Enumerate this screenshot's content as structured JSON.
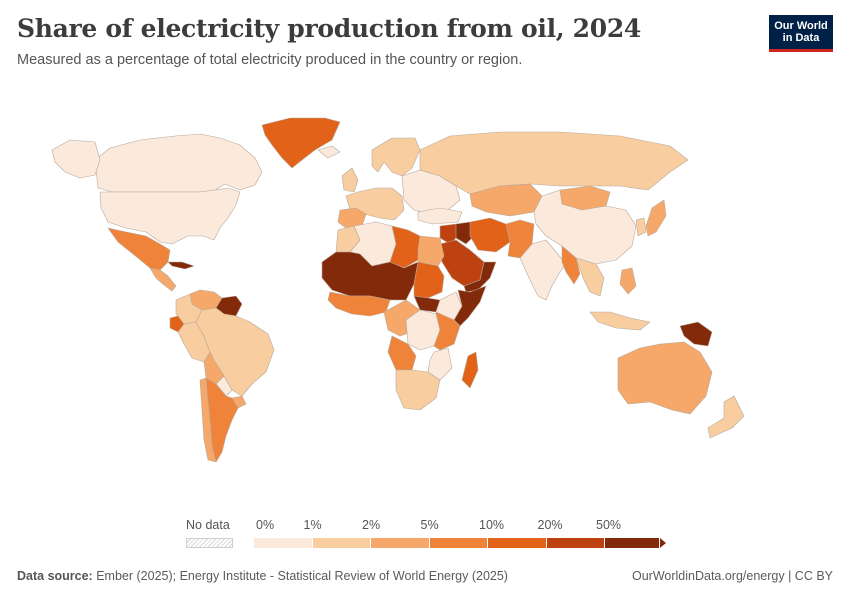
{
  "header": {
    "title": "Share of electricity production from oil, 2024",
    "subtitle": "Measured as a percentage of total electricity produced in the country or region."
  },
  "logo": {
    "line1": "Our World",
    "line2": "in Data"
  },
  "legend": {
    "no_data_label": "No data",
    "bins": [
      {
        "label": "0%",
        "color": "#fbe9dc"
      },
      {
        "label": "1%",
        "color": "#f8cd9f"
      },
      {
        "label": "2%",
        "color": "#f5a86a"
      },
      {
        "label": "5%",
        "color": "#ef8339"
      },
      {
        "label": "10%",
        "color": "#e2621a"
      },
      {
        "label": "20%",
        "color": "#bd4210"
      },
      {
        "label": "50%",
        "color": "#832a0b"
      }
    ]
  },
  "footer": {
    "source_label": "Data source:",
    "source_text": "Ember (2025); Energy Institute - Statistical Review of World Energy (2025)",
    "right_text": "OurWorldinData.org/energy | CC BY"
  },
  "colors": {
    "border": "#b9a99a",
    "ocean": "#ffffff"
  },
  "map_regions": [
    {
      "name": "Canada",
      "color": "#fbe9dc"
    },
    {
      "name": "United States",
      "color": "#fbe9dc"
    },
    {
      "name": "Alaska",
      "color": "#fbe9dc"
    },
    {
      "name": "Greenland",
      "color": "#e2621a"
    },
    {
      "name": "Mexico",
      "color": "#ef8339"
    },
    {
      "name": "Cuba",
      "color": "#832a0b"
    },
    {
      "name": "Central America",
      "color": "#f5a86a"
    },
    {
      "name": "Venezuela",
      "color": "#f5a86a"
    },
    {
      "name": "Guyana & Suriname",
      "color": "#832a0b"
    },
    {
      "name": "Colombia",
      "color": "#f8cd9f"
    },
    {
      "name": "Ecuador",
      "color": "#e2621a"
    },
    {
      "name": "Peru",
      "color": "#f8cd9f"
    },
    {
      "name": "Brazil",
      "color": "#f8cd9f"
    },
    {
      "name": "Bolivia",
      "color": "#f5a86a"
    },
    {
      "name": "Paraguay",
      "color": "#fbe9dc"
    },
    {
      "name": "Uruguay",
      "color": "#f5a86a"
    },
    {
      "name": "Argentina",
      "color": "#ef8339"
    },
    {
      "name": "Chile",
      "color": "#f5a86a"
    },
    {
      "name": "Iceland",
      "color": "#fbe9dc"
    },
    {
      "name": "United Kingdom",
      "color": "#f8cd9f"
    },
    {
      "name": "Scandinavia",
      "color": "#f8cd9f"
    },
    {
      "name": "Western Europe",
      "color": "#f8cd9f"
    },
    {
      "name": "Iberia",
      "color": "#f5a86a"
    },
    {
      "name": "Eastern Europe",
      "color": "#fbe9dc"
    },
    {
      "name": "Russia",
      "color": "#f8cd9f"
    },
    {
      "name": "Kazakhstan",
      "color": "#f5a86a"
    },
    {
      "name": "Mongolia",
      "color": "#f5a86a"
    },
    {
      "name": "China",
      "color": "#fbe9dc"
    },
    {
      "name": "Japan",
      "color": "#f5a86a"
    },
    {
      "name": "Korea",
      "color": "#f8cd9f"
    },
    {
      "name": "Turkey",
      "color": "#fbe9dc"
    },
    {
      "name": "Middle East",
      "color": "#bd4210"
    },
    {
      "name": "Iraq",
      "color": "#832a0b"
    },
    {
      "name": "Iran",
      "color": "#e2621a"
    },
    {
      "name": "Saudi Arabia",
      "color": "#bd4210"
    },
    {
      "name": "Yemen & Oman",
      "color": "#832a0b"
    },
    {
      "name": "Afghanistan & Pakistan",
      "color": "#ef8339"
    },
    {
      "name": "India",
      "color": "#fbe9dc"
    },
    {
      "name": "Bangladesh & Myanmar",
      "color": "#ef8339"
    },
    {
      "name": "Southeast Asia",
      "color": "#f8cd9f"
    },
    {
      "name": "Indonesia",
      "color": "#f8cd9f"
    },
    {
      "name": "Philippines",
      "color": "#f5a86a"
    },
    {
      "name": "Papua New Guinea",
      "color": "#832a0b"
    },
    {
      "name": "Australia",
      "color": "#f5a86a"
    },
    {
      "name": "New Zealand",
      "color": "#f8cd9f"
    },
    {
      "name": "Morocco",
      "color": "#f8cd9f"
    },
    {
      "name": "Algeria",
      "color": "#fbe9dc"
    },
    {
      "name": "Libya",
      "color": "#e2621a"
    },
    {
      "name": "Egypt",
      "color": "#f5a86a"
    },
    {
      "name": "Sahel",
      "color": "#832a0b"
    },
    {
      "name": "Sudan",
      "color": "#e2621a"
    },
    {
      "name": "South Sudan",
      "color": "#832a0b"
    },
    {
      "name": "Horn of Africa",
      "color": "#832a0b"
    },
    {
      "name": "Ethiopia",
      "color": "#fbe9dc"
    },
    {
      "name": "West Africa",
      "color": "#ef8339"
    },
    {
      "name": "Central Africa",
      "color": "#f5a86a"
    },
    {
      "name": "DR Congo",
      "color": "#fbe9dc"
    },
    {
      "name": "Angola",
      "color": "#ef8339"
    },
    {
      "name": "East Africa",
      "color": "#ef8339"
    },
    {
      "name": "Southern Africa",
      "color": "#f8cd9f"
    },
    {
      "name": "Mozambique",
      "color": "#fbe9dc"
    },
    {
      "name": "Madagascar",
      "color": "#e2621a"
    }
  ]
}
